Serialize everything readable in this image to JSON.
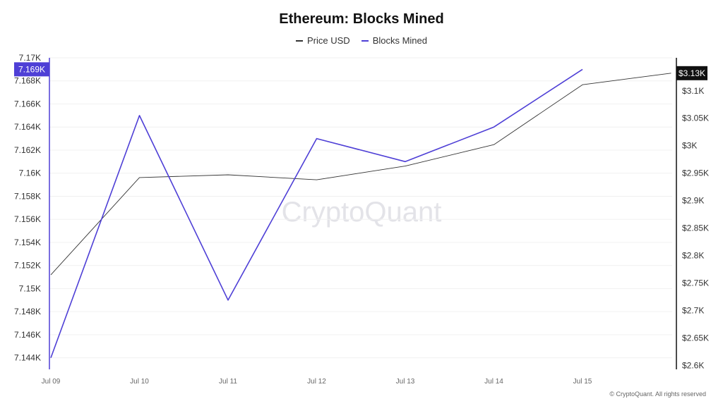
{
  "chart_data": {
    "type": "line",
    "title": "Ethereum: Blocks Mined",
    "categories": [
      "Jul 09",
      "Jul 10",
      "Jul 11",
      "Jul 12",
      "Jul 13",
      "Jul 14",
      "Jul 15",
      ""
    ],
    "x_tick_labels": [
      "Jul 09",
      "Jul 10",
      "Jul 11",
      "Jul 12",
      "Jul 13",
      "Jul 14",
      "Jul 15"
    ],
    "series": [
      {
        "name": "Price USD",
        "axis": "right",
        "color": "#333333",
        "values": [
          2765,
          2942,
          2947,
          2938,
          2963,
          3002,
          3111,
          3132
        ]
      },
      {
        "name": "Blocks Mined",
        "axis": "left",
        "color": "#4e3fd6",
        "values": [
          7144,
          7165,
          7149,
          7163,
          7161,
          7164,
          7169,
          null
        ]
      }
    ],
    "y_left": {
      "ylim": [
        7143.0,
        7170.0
      ],
      "ticks": [
        7144,
        7146,
        7148,
        7150,
        7152,
        7154,
        7156,
        7158,
        7160,
        7162,
        7164,
        7166,
        7168,
        7170
      ],
      "tick_labels": [
        "7.144K",
        "7.146K",
        "7.148K",
        "7.15K",
        "7.152K",
        "7.154K",
        "7.156K",
        "7.158K",
        "7.16K",
        "7.162K",
        "7.164K",
        "7.166K",
        "7.168K",
        "7.17K"
      ],
      "current_label": "7.169K",
      "current_value": 7169,
      "current_color": "#4e3fd6"
    },
    "y_right": {
      "ylim": [
        2593,
        3160
      ],
      "ticks": [
        2600,
        2650,
        2700,
        2750,
        2800,
        2850,
        2900,
        2950,
        3000,
        3050,
        3100
      ],
      "tick_labels": [
        "$2.6K",
        "$2.65K",
        "$2.7K",
        "$2.75K",
        "$2.8K",
        "$2.85K",
        "$2.9K",
        "$2.95K",
        "$3K",
        "$3.05K",
        "$3.1K"
      ],
      "current_label": "$3.13K",
      "current_value": 3132,
      "current_color": "#111111"
    },
    "grid": true,
    "legend": "top-center",
    "watermark": "CryptoQuant"
  },
  "copyright": "© CryptoQuant. All rights reserved"
}
